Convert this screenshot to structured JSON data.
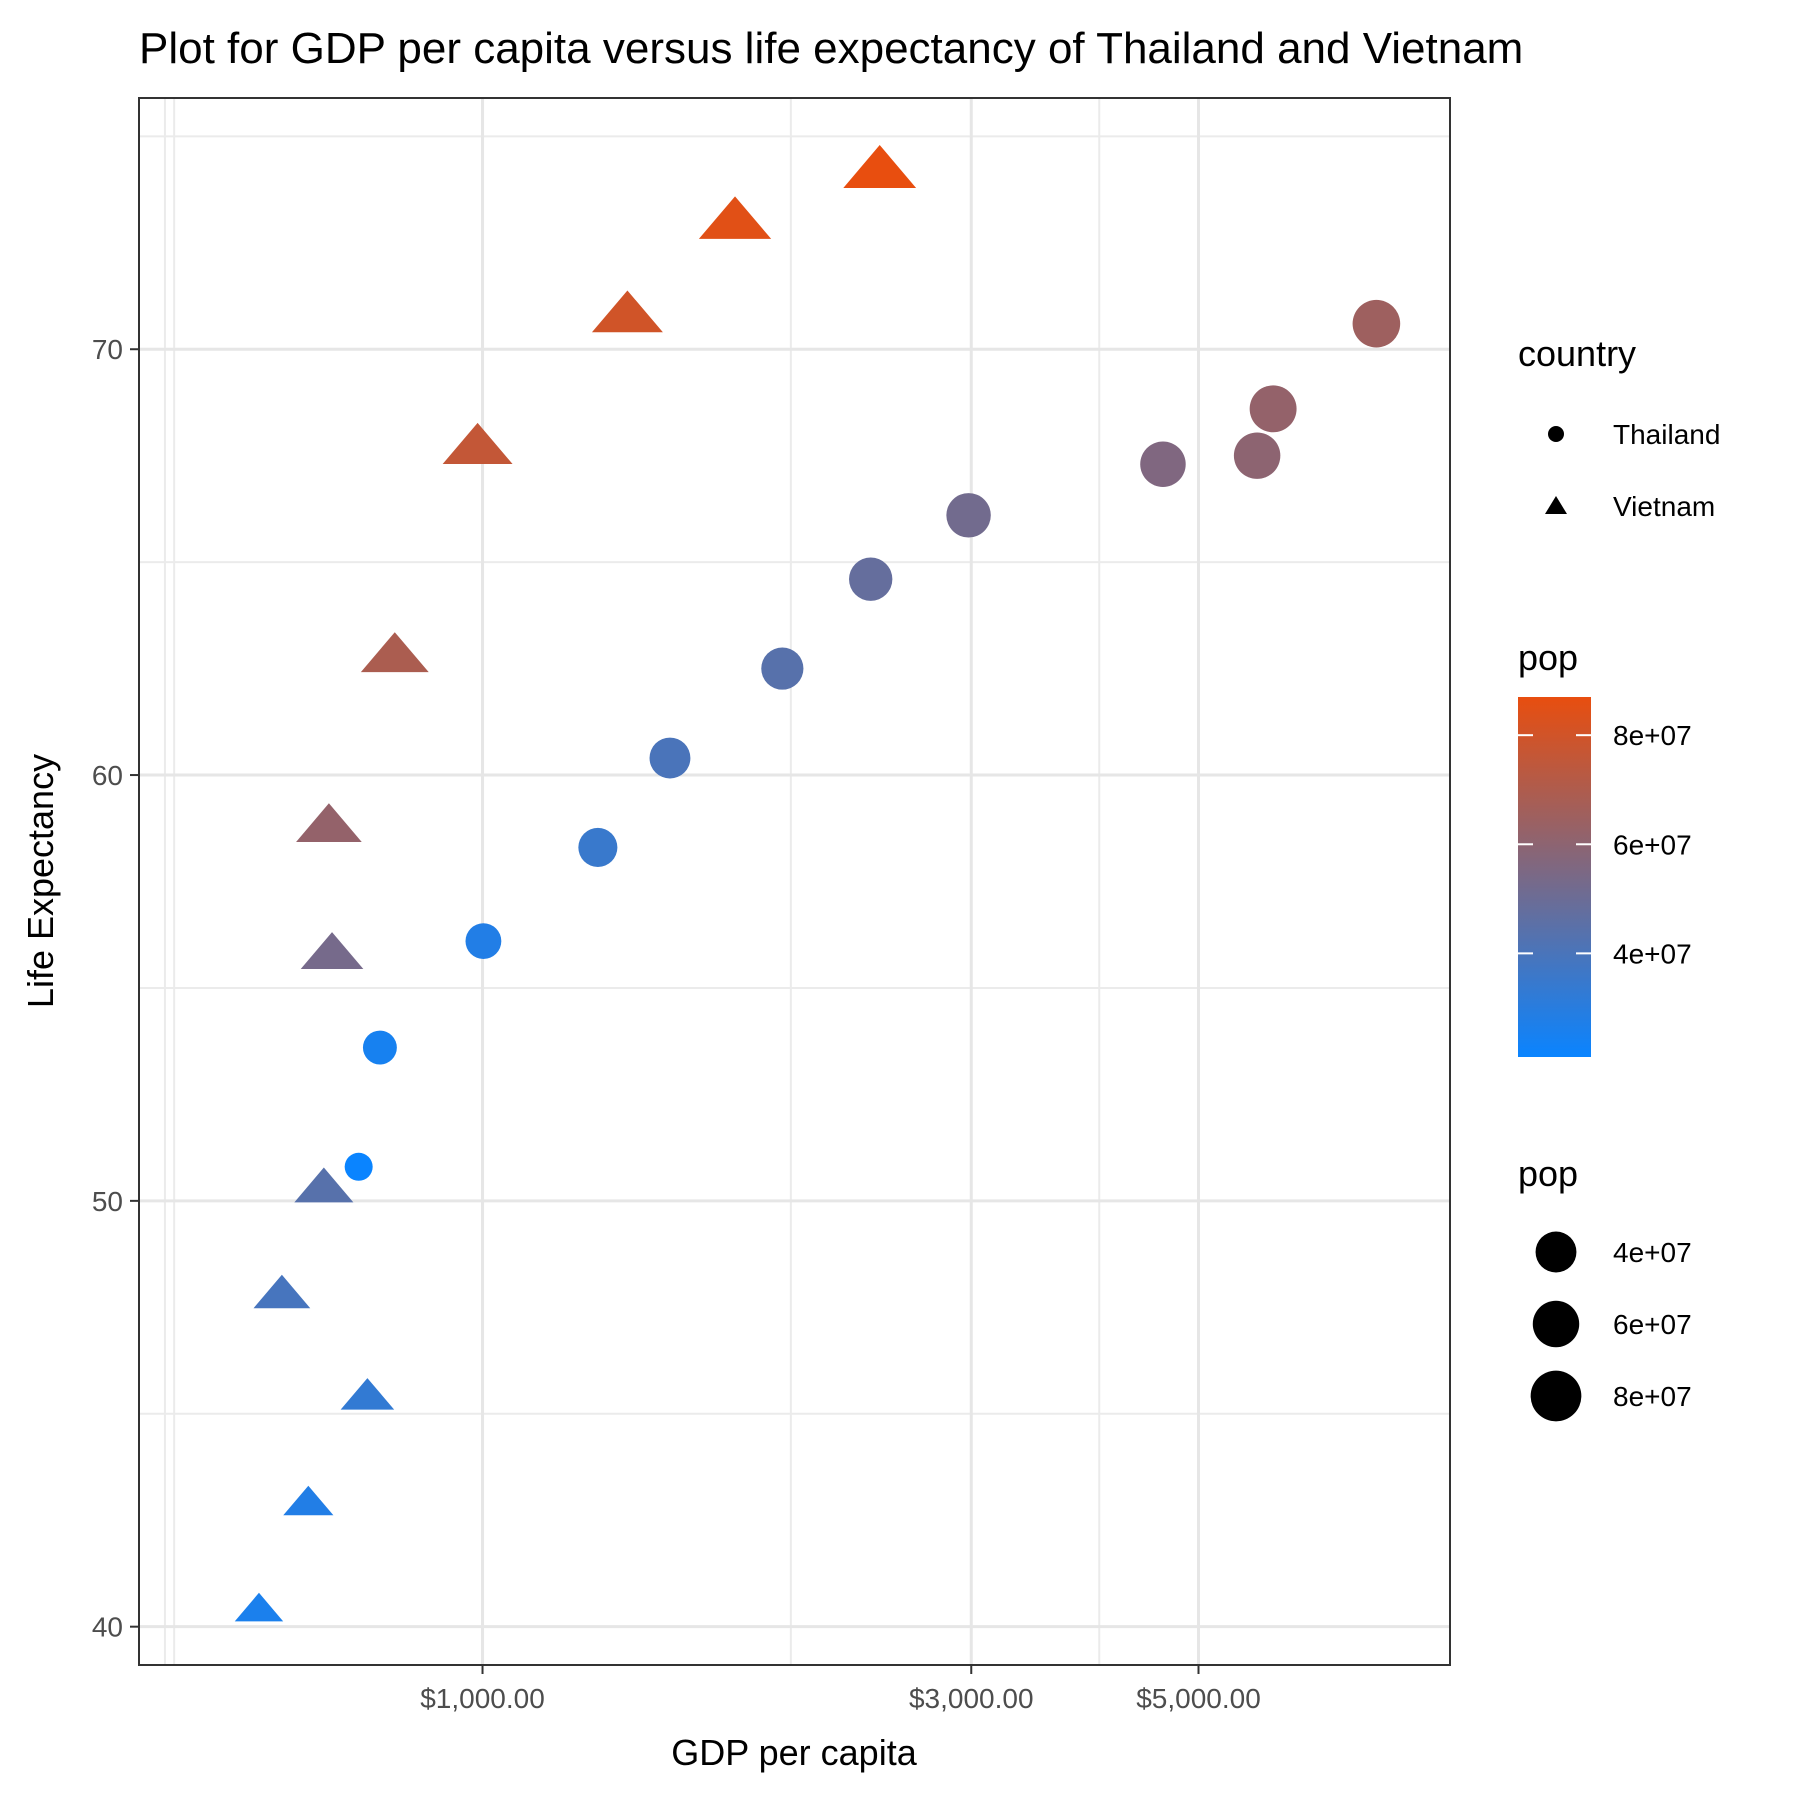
{
  "chart_data": {
    "type": "scatter",
    "title": "Plot for GDP per capita versus life expectancy of Thailand and Vietnam",
    "xlabel": "GDP per capita",
    "ylabel": "Life Expectancy",
    "x_scale": "log10",
    "x_ticks": [
      {
        "value": 1000,
        "label": "$1,000.00"
      },
      {
        "value": 3000,
        "label": "$3,000.00"
      },
      {
        "value": 5000,
        "label": "$5,000.00"
      }
    ],
    "x_minor_gridlines": [
      500,
      2000,
      4000
    ],
    "y_ticks": [
      {
        "value": 40,
        "label": "40"
      },
      {
        "value": 50,
        "label": "50"
      },
      {
        "value": 60,
        "label": "60"
      },
      {
        "value": 70,
        "label": "70"
      }
    ],
    "xlim": [
      462,
      8800
    ],
    "ylim": [
      39.1,
      75.9
    ],
    "grid": true,
    "legend_placement": "right",
    "color_scale": {
      "title": "pop",
      "low_color": "#0A84FF",
      "high_color": "#E84E0F",
      "range": [
        21000000,
        87000000
      ],
      "ticks": [
        {
          "value": 40000000,
          "label": "4e+07"
        },
        {
          "value": 60000000,
          "label": "6e+07"
        },
        {
          "value": 80000000,
          "label": "8e+07"
        }
      ]
    },
    "shape_legend": {
      "title": "country",
      "entries": [
        {
          "label": "Thailand",
          "shape": "circle"
        },
        {
          "label": "Vietnam",
          "shape": "triangle"
        }
      ]
    },
    "size_legend": {
      "title": "pop",
      "entries": [
        {
          "value": 40000000,
          "label": "4e+07"
        },
        {
          "value": 60000000,
          "label": "6e+07"
        },
        {
          "value": 80000000,
          "label": "8e+07"
        }
      ]
    },
    "series": [
      {
        "name": "Thailand",
        "shape": "circle",
        "points": [
          {
            "x": 757,
            "y": 50.8,
            "pop": 21000000
          },
          {
            "x": 794,
            "y": 53.6,
            "pop": 25000000
          },
          {
            "x": 1002,
            "y": 56.1,
            "pop": 28000000
          },
          {
            "x": 1296,
            "y": 58.3,
            "pop": 35000000
          },
          {
            "x": 1524,
            "y": 60.4,
            "pop": 40000000
          },
          {
            "x": 1962,
            "y": 62.5,
            "pop": 44000000
          },
          {
            "x": 2393,
            "y": 64.6,
            "pop": 48000000
          },
          {
            "x": 2982,
            "y": 66.1,
            "pop": 52000000
          },
          {
            "x": 4616,
            "y": 67.3,
            "pop": 56000000
          },
          {
            "x": 5704,
            "y": 67.5,
            "pop": 60000000
          },
          {
            "x": 5913,
            "y": 68.6,
            "pop": 62000000
          },
          {
            "x": 7458,
            "y": 70.6,
            "pop": 65000000
          }
        ]
      },
      {
        "name": "Vietnam",
        "shape": "triangle",
        "points": [
          {
            "x": 605,
            "y": 40.4,
            "pop": 26000000
          },
          {
            "x": 676,
            "y": 42.9,
            "pop": 28000000
          },
          {
            "x": 772,
            "y": 45.4,
            "pop": 33000000
          },
          {
            "x": 637,
            "y": 47.8,
            "pop": 39000000
          },
          {
            "x": 700,
            "y": 50.3,
            "pop": 44000000
          },
          {
            "x": 713,
            "y": 55.8,
            "pop": 53000000
          },
          {
            "x": 708,
            "y": 58.8,
            "pop": 62000000
          },
          {
            "x": 821,
            "y": 62.8,
            "pop": 69000000
          },
          {
            "x": 989,
            "y": 67.7,
            "pop": 76000000
          },
          {
            "x": 1385,
            "y": 70.8,
            "pop": 80000000
          },
          {
            "x": 1764,
            "y": 73.0,
            "pop": 85000000
          },
          {
            "x": 2442,
            "y": 74.2,
            "pop": 87000000
          }
        ]
      }
    ]
  }
}
